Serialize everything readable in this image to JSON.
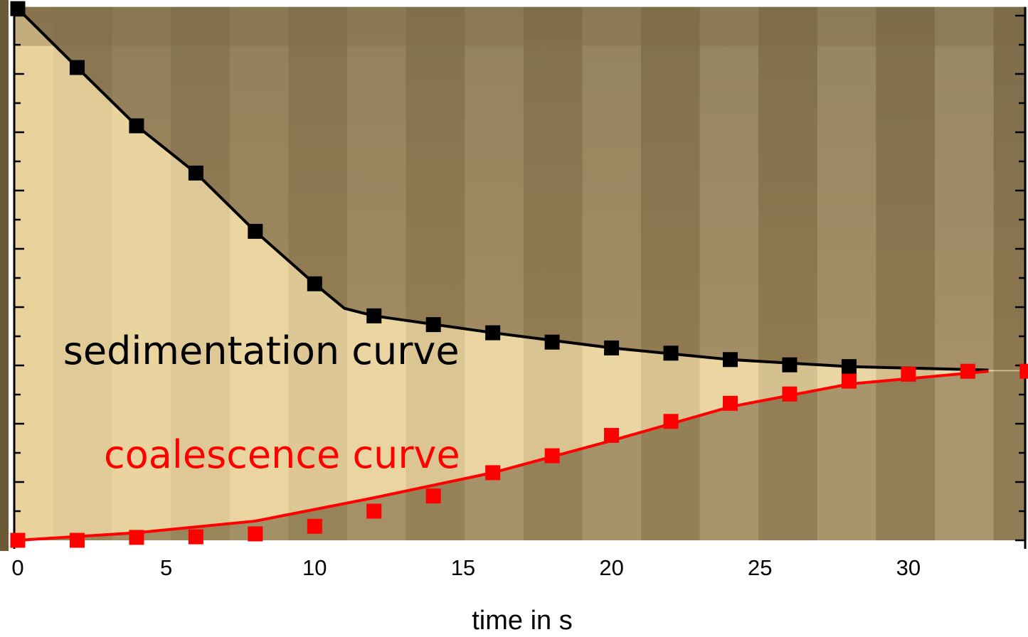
{
  "chart_data": {
    "type": "scatter",
    "x_label": "time in s",
    "xlim": [
      0,
      34
    ],
    "xticks": [
      0,
      5,
      10,
      15,
      20,
      25,
      30
    ],
    "ylim": [
      0,
      9.15
    ],
    "yticks": [
      0,
      0.5,
      1,
      1.5,
      2,
      2.5,
      3,
      3.5,
      4,
      4.5,
      5,
      5.5,
      6,
      6.5,
      7,
      7.5,
      8,
      8.5,
      9
    ],
    "grid": false,
    "series": [
      {
        "color": "#000000",
        "x": [
          0,
          2,
          4,
          6,
          8,
          10,
          12,
          14,
          16,
          18,
          20,
          22,
          24,
          26,
          28
        ],
        "values": [
          9.12,
          8.11,
          7.11,
          6.3,
          5.3,
          4.4,
          3.85,
          3.7,
          3.56,
          3.4,
          3.3,
          3.21,
          3.1,
          3.01,
          2.98
        ]
      },
      {
        "color": "#ff0000",
        "x": [
          0,
          2,
          4,
          6,
          8,
          10,
          12,
          14,
          16,
          18,
          20,
          22,
          24,
          26,
          28,
          30,
          32,
          34
        ],
        "values": [
          0,
          0,
          0.05,
          0.06,
          0.11,
          0.24,
          0.5,
          0.76,
          1.16,
          1.45,
          1.8,
          2.04,
          2.35,
          2.51,
          2.73,
          2.85,
          2.9,
          2.9
        ]
      }
    ],
    "fits": [
      {
        "color": "#000000",
        "x": [
          0,
          2,
          4,
          6,
          8,
          10,
          11,
          12,
          16,
          20,
          24,
          28,
          32.7
        ],
        "values": [
          9.12,
          8.11,
          7.11,
          6.3,
          5.3,
          4.4,
          3.98,
          3.85,
          3.56,
          3.3,
          3.1,
          2.98,
          2.92
        ]
      },
      {
        "color": "#ff0000",
        "x": [
          0,
          4,
          8,
          12,
          16,
          20,
          24,
          28,
          32.7
        ],
        "values": [
          0,
          0.13,
          0.33,
          0.73,
          1.16,
          1.71,
          2.29,
          2.68,
          2.9
        ]
      }
    ],
    "annotations": [
      {
        "text": "sedimentation curve",
        "color": "#000000",
        "x": 8.2,
        "y": 3.2
      },
      {
        "text": "coalescence curve",
        "color": "#ff0000",
        "x": 8.9,
        "y": 1.42
      }
    ]
  }
}
